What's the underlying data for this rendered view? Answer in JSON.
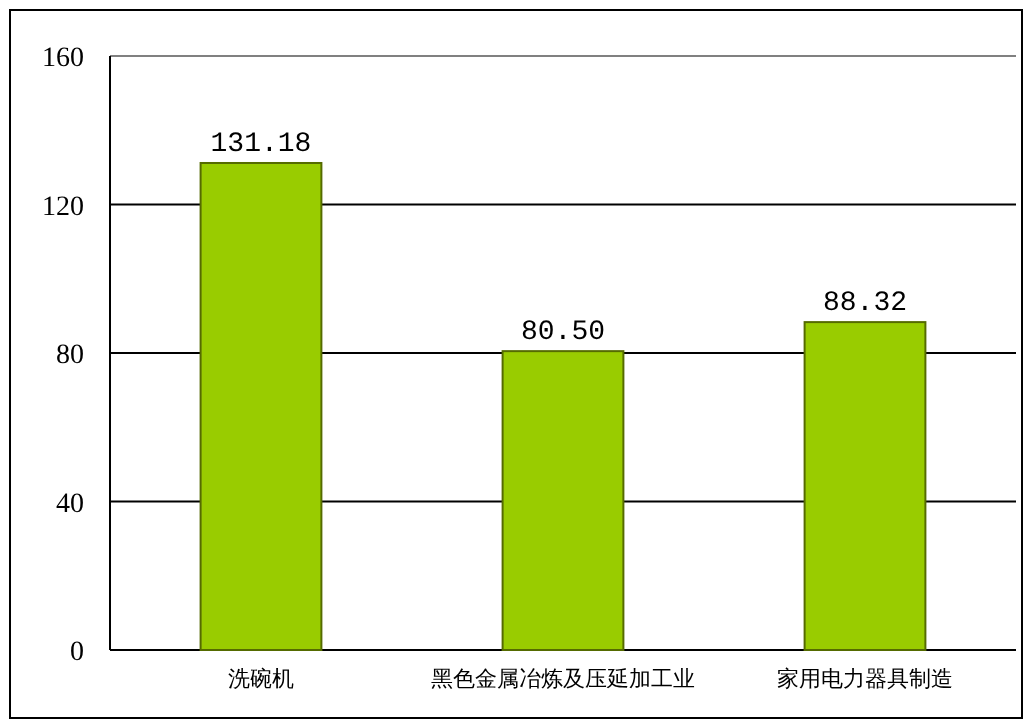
{
  "chart_data": {
    "type": "bar",
    "categories": [
      "洗碗机",
      "黑色金属冶炼及压延加工业",
      "家用电力器具制造"
    ],
    "values": [
      131.18,
      80.5,
      88.32
    ],
    "value_labels": [
      "131.18",
      "80.50",
      "88.32"
    ],
    "color": "#99cc00",
    "ylim": [
      0,
      160
    ],
    "yticks": [
      0,
      40,
      80,
      120,
      160
    ],
    "grid": "y"
  }
}
